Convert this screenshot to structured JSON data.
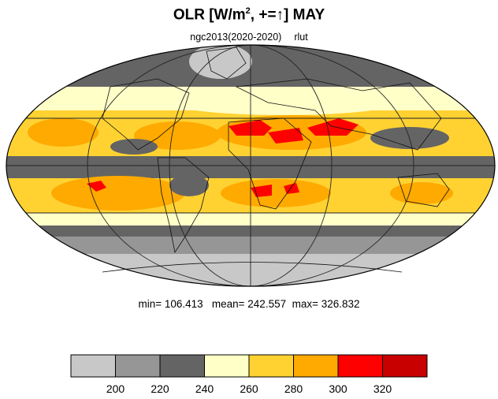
{
  "title": {
    "prefix": "OLR [W/m",
    "superscript": "2",
    "suffix": ", +=↑] MAY"
  },
  "subtitle": {
    "left": "ngc2013(2020-2020)",
    "right": "rlut"
  },
  "stats": "min= 106.413   mean= 242.557  max= 326.832",
  "colorbar": {
    "bins": [
      {
        "color": "#c8c8c8",
        "range": "<200"
      },
      {
        "color": "#969696",
        "range": "200-220"
      },
      {
        "color": "#646464",
        "range": "220-240"
      },
      {
        "color": "#ffffc8",
        "range": "240-260"
      },
      {
        "color": "#ffd232",
        "range": "260-280"
      },
      {
        "color": "#ffaa00",
        "range": "280-300"
      },
      {
        "color": "#ff0000",
        "range": "300-320"
      },
      {
        "color": "#c80000",
        "range": ">320"
      }
    ],
    "labels": [
      "200",
      "220",
      "240",
      "260",
      "280",
      "300",
      "320"
    ]
  },
  "map": {
    "projection": "mollweide",
    "gridlines": true,
    "colors": {
      "polar_south": "#c8c8c8",
      "southern_storm": "#969696",
      "mid": "#646464",
      "subtropics": "#ffffc8",
      "warm": "#ffd232",
      "hot": "#ffaa00",
      "hottest": "#ff0000"
    }
  }
}
